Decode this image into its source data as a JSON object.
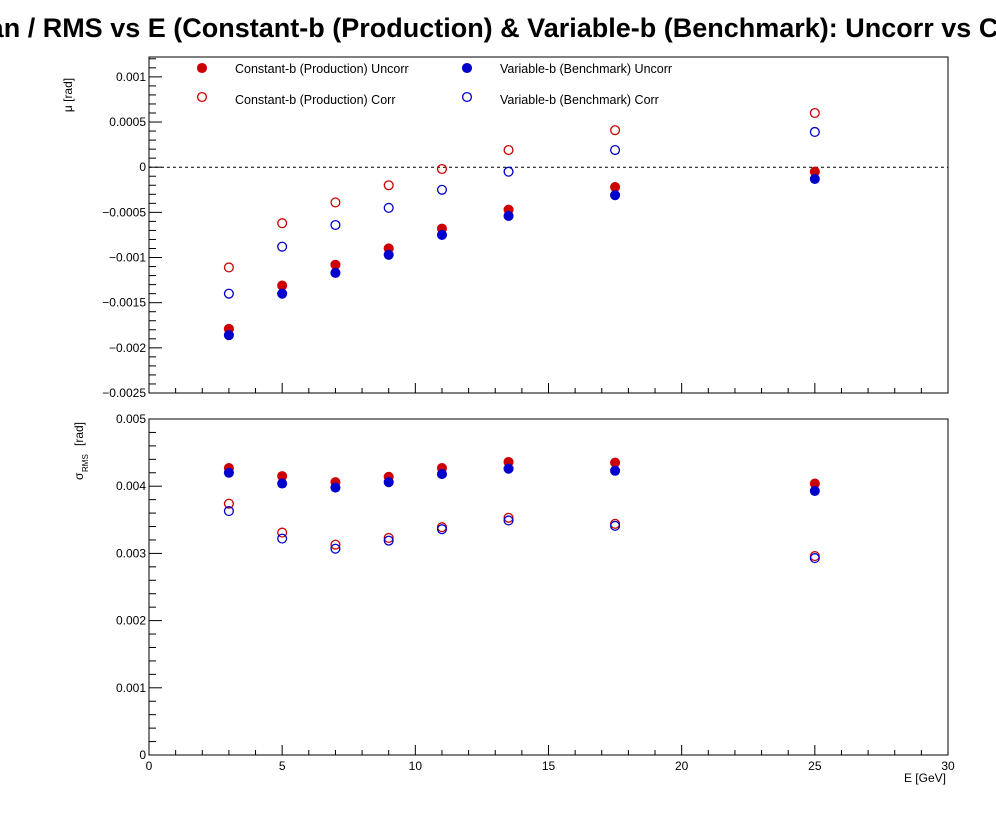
{
  "chart_data": {
    "type": "scatter",
    "title": "Mean / RMS vs E  (Constant-b (Production) & Variable-b (Benchmark): Uncorr vs Corr)",
    "x": [
      3,
      5,
      7,
      9,
      11,
      13.5,
      17.5,
      25
    ],
    "xlabel": "E  [GeV]",
    "xlim": [
      0,
      30
    ],
    "xticks": [
      "0",
      "5",
      "10",
      "15",
      "20",
      "25",
      "30"
    ],
    "colors": {
      "production": "#cc0000",
      "benchmark": "#0000cc"
    },
    "series_names": [
      "Constant-b (Production) Uncorr",
      "Variable-b (Benchmark) Uncorr",
      "Constant-b (Production) Corr",
      "Variable-b (Benchmark) Corr"
    ],
    "panels": [
      {
        "ylabel": "μ  [rad]",
        "ylim": [
          -0.0025,
          0.00122
        ],
        "yticks": [
          "0.001",
          "0.0005",
          "0",
          "−0.0005",
          "−0.001",
          "−0.0015",
          "−0.002",
          "−0.0025"
        ],
        "reference_line": 0,
        "series": [
          {
            "name": "Constant-b (Production) Uncorr",
            "marker": "filled",
            "color": "production",
            "values": [
              -0.00179,
              -0.00131,
              -0.00108,
              -0.0009,
              -0.00068,
              -0.00047,
              -0.00022,
              -5e-05
            ]
          },
          {
            "name": "Variable-b (Benchmark) Uncorr",
            "marker": "filled",
            "color": "benchmark",
            "values": [
              -0.00186,
              -0.0014,
              -0.00117,
              -0.00097,
              -0.00075,
              -0.00054,
              -0.00031,
              -0.00013
            ]
          },
          {
            "name": "Constant-b (Production) Corr",
            "marker": "open",
            "color": "production",
            "values": [
              -0.00111,
              -0.00062,
              -0.00039,
              -0.0002,
              -2e-05,
              0.00019,
              0.00041,
              0.0006
            ]
          },
          {
            "name": "Variable-b (Benchmark) Corr",
            "marker": "open",
            "color": "benchmark",
            "values": [
              -0.0014,
              -0.00088,
              -0.00064,
              -0.00045,
              -0.00025,
              -5e-05,
              0.00019,
              0.00039
            ]
          }
        ]
      },
      {
        "ylabel_main": "σ",
        "ylabel_sub": "RMS",
        "ylabel_unit": "[rad]",
        "ylim": [
          0,
          0.005
        ],
        "yticks": [
          "0.005",
          "0.004",
          "0.003",
          "0.002",
          "0.001",
          "0"
        ],
        "series": [
          {
            "name": "Constant-b (Production) Uncorr",
            "marker": "filled",
            "color": "production",
            "values": [
              0.00427,
              0.00415,
              0.00406,
              0.00414,
              0.00427,
              0.00436,
              0.00435,
              0.00404
            ]
          },
          {
            "name": "Variable-b (Benchmark) Uncorr",
            "marker": "filled",
            "color": "benchmark",
            "values": [
              0.0042,
              0.00404,
              0.00398,
              0.00406,
              0.00418,
              0.00426,
              0.00423,
              0.00393
            ]
          },
          {
            "name": "Constant-b (Production) Corr",
            "marker": "open",
            "color": "production",
            "values": [
              0.00374,
              0.00331,
              0.00313,
              0.00323,
              0.00339,
              0.00353,
              0.00344,
              0.00296
            ]
          },
          {
            "name": "Variable-b (Benchmark) Corr",
            "marker": "open",
            "color": "benchmark",
            "values": [
              0.00363,
              0.00322,
              0.00307,
              0.00319,
              0.00336,
              0.00349,
              0.00341,
              0.00293
            ]
          }
        ]
      }
    ]
  }
}
